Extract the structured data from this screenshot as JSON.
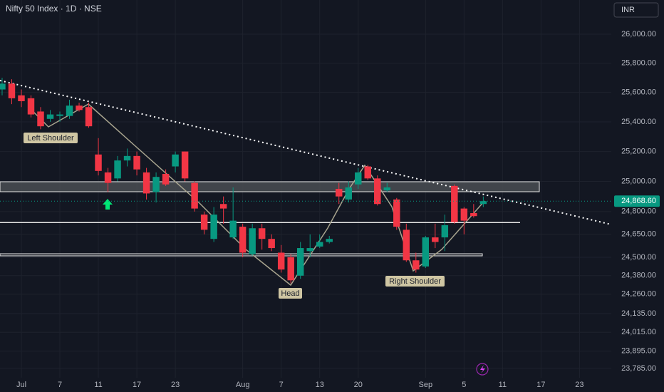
{
  "chart_data": {
    "type": "candlestick",
    "title": "Nifty 50 Index · 1D · NSE",
    "currency": "INR",
    "log_scale": true,
    "grid": true,
    "up_color": "#089981",
    "down_color": "#f23645",
    "x": [
      0,
      1,
      2,
      3,
      4,
      5,
      6,
      7,
      8,
      9,
      10,
      11,
      12,
      13,
      14,
      15,
      16,
      17,
      18,
      19,
      20,
      21,
      22,
      23,
      24,
      25,
      26,
      27,
      28,
      29,
      30,
      31,
      32,
      33,
      34,
      35,
      36,
      37,
      38,
      39,
      40,
      41,
      42,
      43,
      44,
      45,
      46,
      47,
      48,
      49,
      50
    ],
    "open": [
      25620,
      25660,
      25580,
      25560,
      25470,
      25420,
      25440,
      25440,
      25510,
      25500,
      25180,
      25060,
      25020,
      25140,
      25170,
      25060,
      24930,
      25050,
      25100,
      25200,
      24990,
      24780,
      24620,
      24850,
      24630,
      24700,
      24520,
      24690,
      24620,
      24530,
      24500,
      24380,
      24540,
      24570,
      24600,
      24950,
      24880,
      24980,
      25100,
      25020,
      24940,
      24880,
      24680,
      24480,
      24440,
      24630,
      24630,
      24970,
      24820,
      24790,
      24850
    ],
    "high": [
      25700,
      25690,
      25620,
      25580,
      25500,
      25480,
      25470,
      25550,
      25530,
      25530,
      25290,
      25090,
      25170,
      25220,
      25200,
      25090,
      25060,
      25080,
      25200,
      25200,
      25000,
      24800,
      24830,
      24900,
      24960,
      24720,
      24720,
      24720,
      24650,
      24580,
      24520,
      24600,
      24650,
      24650,
      24640,
      24990,
      25000,
      25090,
      25110,
      25040,
      24990,
      24890,
      24720,
      24530,
      24640,
      24720,
      24780,
      24980,
      24830,
      24850,
      24900
    ],
    "low": [
      25580,
      25520,
      25500,
      25430,
      25350,
      25400,
      25400,
      25420,
      25470,
      25360,
      25040,
      24930,
      25000,
      25100,
      25040,
      24880,
      24860,
      24970,
      25060,
      25000,
      24800,
      24650,
      24600,
      24720,
      24620,
      24500,
      24510,
      24550,
      24540,
      24400,
      24330,
      24360,
      24500,
      24560,
      24590,
      24850,
      24860,
      24950,
      25010,
      24840,
      24930,
      24680,
      24470,
      24400,
      24430,
      24560,
      24540,
      24720,
      24650,
      24760,
      24830
    ],
    "close": [
      25660,
      25560,
      25540,
      25450,
      25370,
      25450,
      25450,
      25510,
      25480,
      25370,
      25070,
      24990,
      25140,
      25170,
      25080,
      24920,
      25030,
      24980,
      25180,
      25020,
      24820,
      24680,
      24780,
      24820,
      24740,
      24530,
      24690,
      24620,
      24560,
      24420,
      24350,
      24560,
      24560,
      24600,
      24620,
      24900,
      24960,
      25060,
      25020,
      24850,
      24960,
      24700,
      24480,
      24420,
      24630,
      24600,
      24710,
      24730,
      24740,
      24770,
      24869
    ],
    "xlim": [
      -0.22,
      63.3
    ],
    "xticks": [
      {
        "value": 2,
        "label": "Jul"
      },
      {
        "value": 6,
        "label": "7"
      },
      {
        "value": 10,
        "label": "11"
      },
      {
        "value": 14,
        "label": "17"
      },
      {
        "value": 18,
        "label": "23"
      },
      {
        "value": 25,
        "label": "Aug"
      },
      {
        "value": 29,
        "label": "7"
      },
      {
        "value": 33,
        "label": "13"
      },
      {
        "value": 37,
        "label": "20"
      },
      {
        "value": 44,
        "label": "Sep"
      },
      {
        "value": 48,
        "label": "5"
      },
      {
        "value": 52,
        "label": "11"
      },
      {
        "value": 56,
        "label": "17"
      },
      {
        "value": 60,
        "label": "23"
      }
    ],
    "ylim": [
      23726,
      26238
    ],
    "yticks": [
      {
        "value": 26000,
        "label": "26,000.00"
      },
      {
        "value": 25800,
        "label": "25,800.00"
      },
      {
        "value": 25600,
        "label": "25,600.00"
      },
      {
        "value": 25400,
        "label": "25,400.00"
      },
      {
        "value": 25200,
        "label": "25,200.00"
      },
      {
        "value": 25000,
        "label": "25,000.00"
      },
      {
        "value": 24800,
        "label": "24,800.00"
      },
      {
        "value": 24650,
        "label": "24,650.00"
      },
      {
        "value": 24500,
        "label": "24,500.00"
      },
      {
        "value": 24380,
        "label": "24,380.00"
      },
      {
        "value": 24260,
        "label": "24,260.00"
      },
      {
        "value": 24135,
        "label": "24,135.00"
      },
      {
        "value": 24015,
        "label": "24,015.00"
      },
      {
        "value": 23895,
        "label": "23,895.00"
      },
      {
        "value": 23785,
        "label": "23,785.00"
      }
    ],
    "last_price": {
      "value": 24868.6,
      "label": "24,868.60"
    },
    "annotations": [
      "Left Shoulder",
      "Head",
      "Right Shoulder"
    ]
  }
}
